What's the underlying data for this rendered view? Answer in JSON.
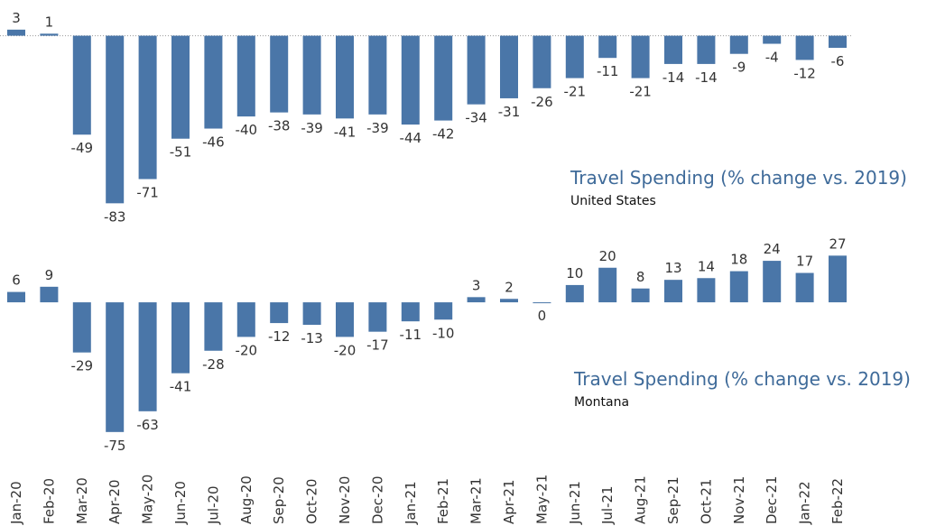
{
  "chart_data": [
    {
      "type": "bar",
      "title": "Travel Spending (% change vs. 2019)",
      "subtitle": "United States",
      "categories": [
        "Jan-20",
        "Feb-20",
        "Mar-20",
        "Apr-20",
        "May-20",
        "Jun-20",
        "Jul-20",
        "Aug-20",
        "Sep-20",
        "Oct-20",
        "Nov-20",
        "Dec-20",
        "Jan-21",
        "Feb-21",
        "Mar-21",
        "Apr-21",
        "May-21",
        "Jun-21",
        "Jul-21",
        "Aug-21",
        "Sep-21",
        "Oct-21",
        "Nov-21",
        "Dec-21",
        "Jan-22",
        "Feb-22"
      ],
      "values": [
        3,
        1,
        -49,
        -83,
        -71,
        -51,
        -46,
        -40,
        -38,
        -39,
        -41,
        -39,
        -44,
        -42,
        -34,
        -31,
        -26,
        -21,
        -11,
        -21,
        -14,
        -14,
        -9,
        -4,
        -12,
        -6
      ],
      "color": "#4a76a8",
      "ylim": [
        -90,
        15
      ],
      "zero_line": "dotted"
    },
    {
      "type": "bar",
      "title": "Travel Spending (% change vs. 2019)",
      "subtitle": "Montana",
      "categories": [
        "Jan-20",
        "Feb-20",
        "Mar-20",
        "Apr-20",
        "May-20",
        "Jun-20",
        "Jul-20",
        "Aug-20",
        "Sep-20",
        "Oct-20",
        "Nov-20",
        "Dec-20",
        "Jan-21",
        "Feb-21",
        "Mar-21",
        "Apr-21",
        "May-21",
        "Jun-21",
        "Jul-21",
        "Aug-21",
        "Sep-21",
        "Oct-21",
        "Nov-21",
        "Dec-21",
        "Jan-22",
        "Feb-22"
      ],
      "values": [
        6,
        9,
        -29,
        -75,
        -63,
        -41,
        -28,
        -20,
        -12,
        -13,
        -20,
        -17,
        -11,
        -10,
        3,
        2,
        0,
        10,
        20,
        8,
        13,
        14,
        18,
        24,
        17,
        27
      ],
      "color": "#4a76a8",
      "ylim": [
        -85,
        35
      ]
    }
  ]
}
